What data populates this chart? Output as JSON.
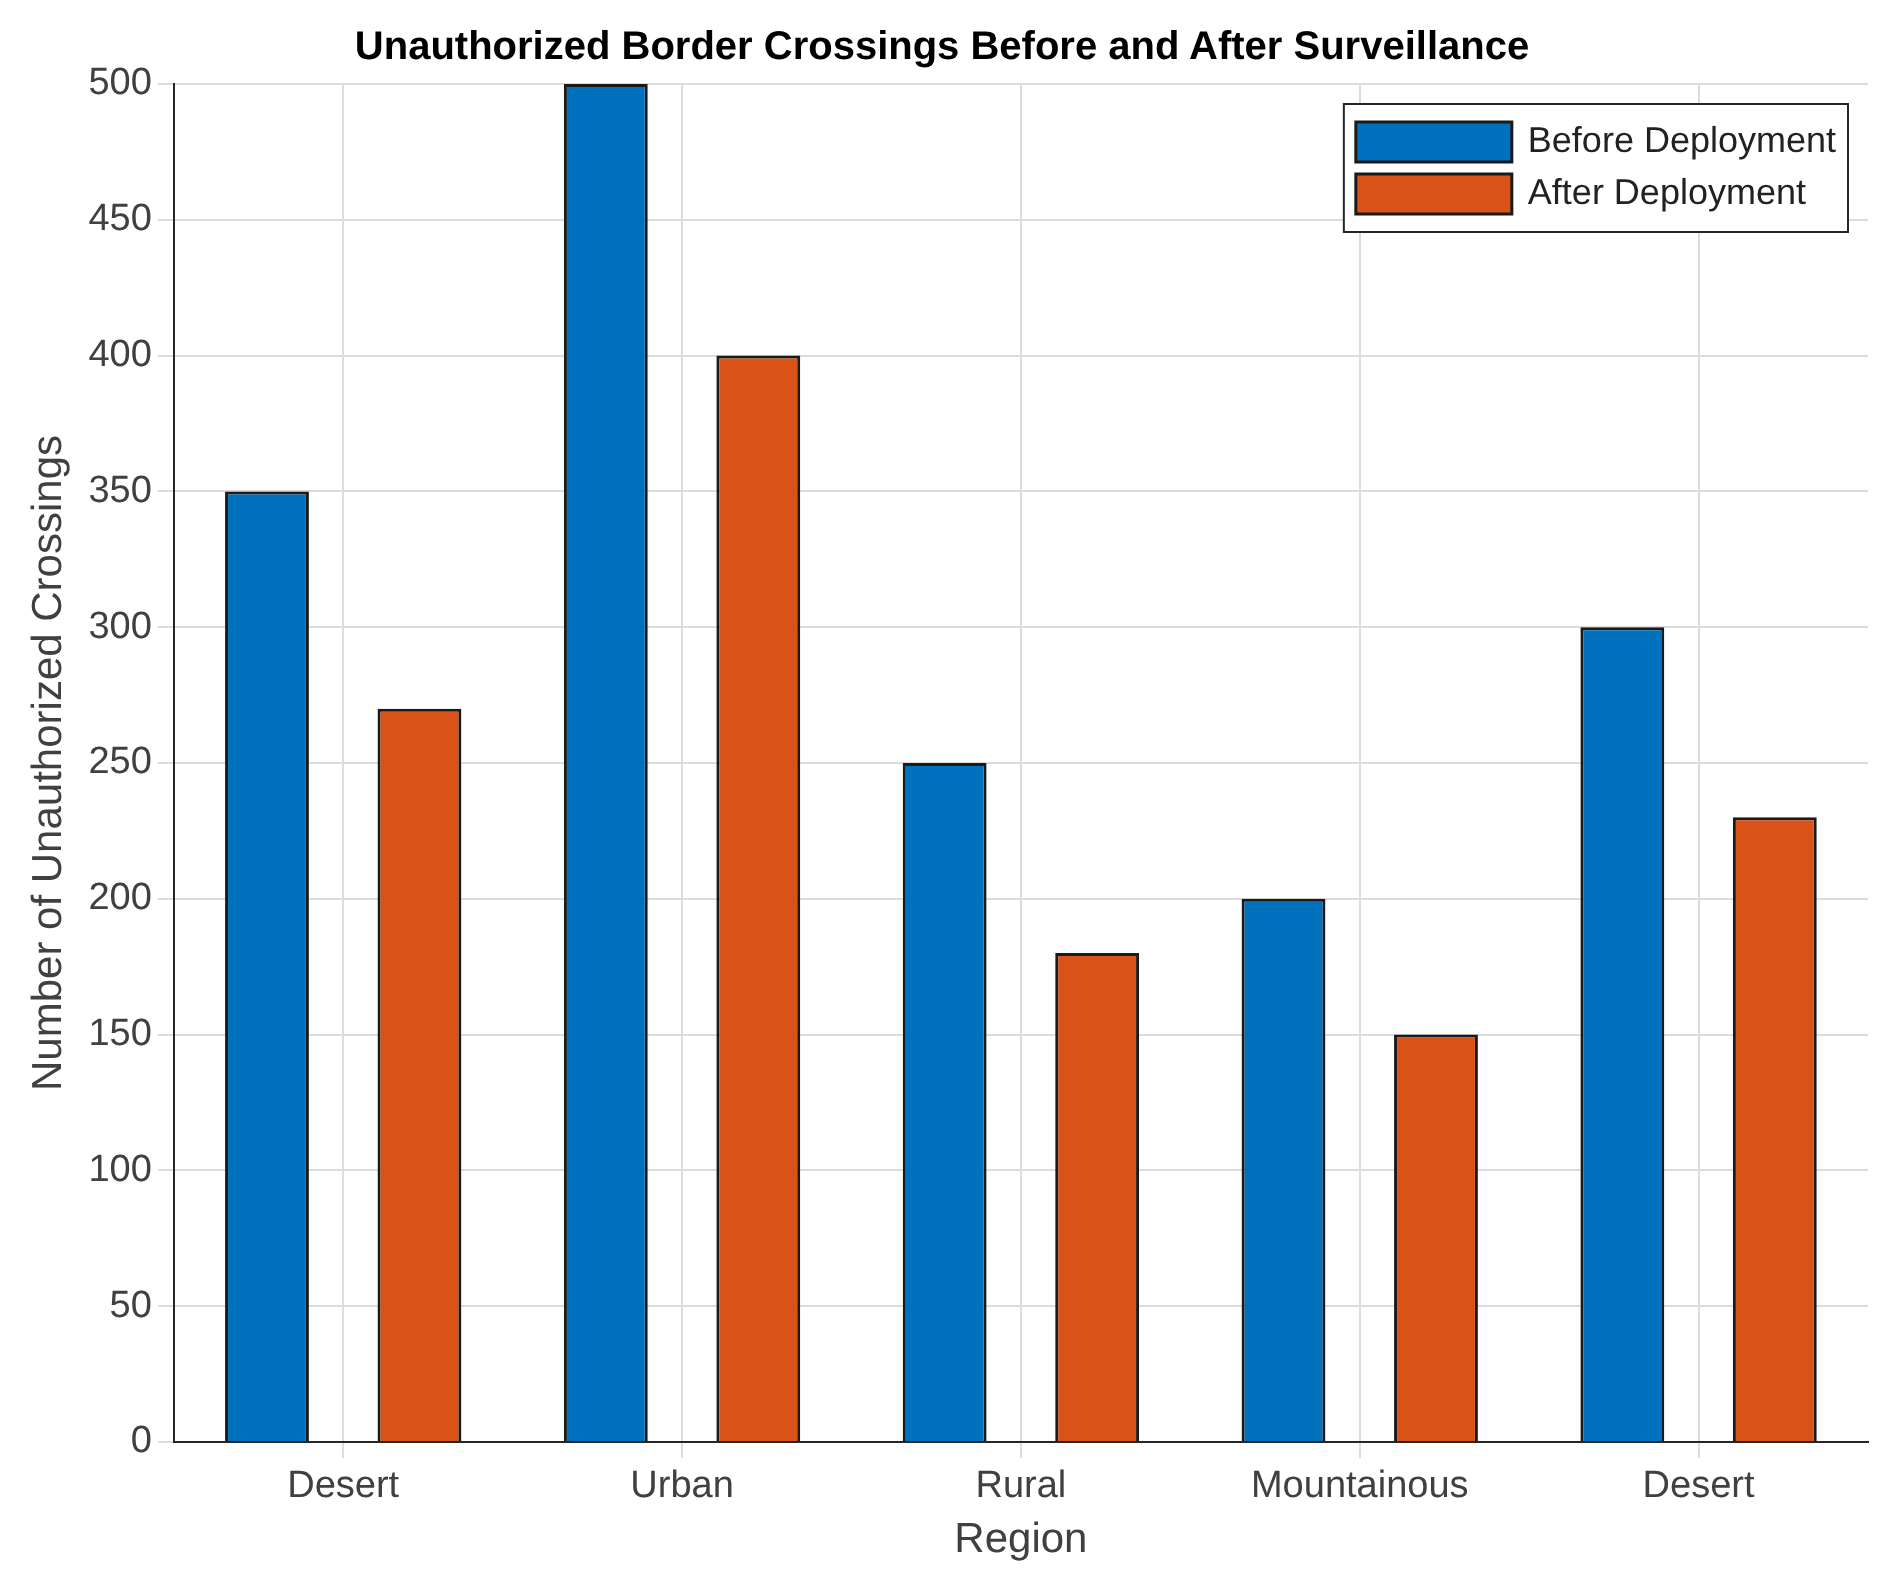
{
  "chart_data": {
    "type": "bar",
    "title": "Unauthorized Border Crossings Before and After Surveillance",
    "xlabel": "Region",
    "ylabel": "Number of Unauthorized Crossings",
    "categories": [
      "Desert",
      "Urban",
      "Rural",
      "Mountainous",
      "Desert"
    ],
    "series": [
      {
        "name": "Before Deployment",
        "color": "#0072bd",
        "values": [
          350,
          500,
          250,
          200,
          300
        ]
      },
      {
        "name": "After Deployment",
        "color": "#d95319",
        "values": [
          270,
          400,
          180,
          150,
          230
        ]
      }
    ],
    "ylim": [
      0,
      500
    ],
    "yticks": [
      0,
      50,
      100,
      150,
      200,
      250,
      300,
      350,
      400,
      450,
      500
    ],
    "grid": true,
    "legend": "top right"
  }
}
